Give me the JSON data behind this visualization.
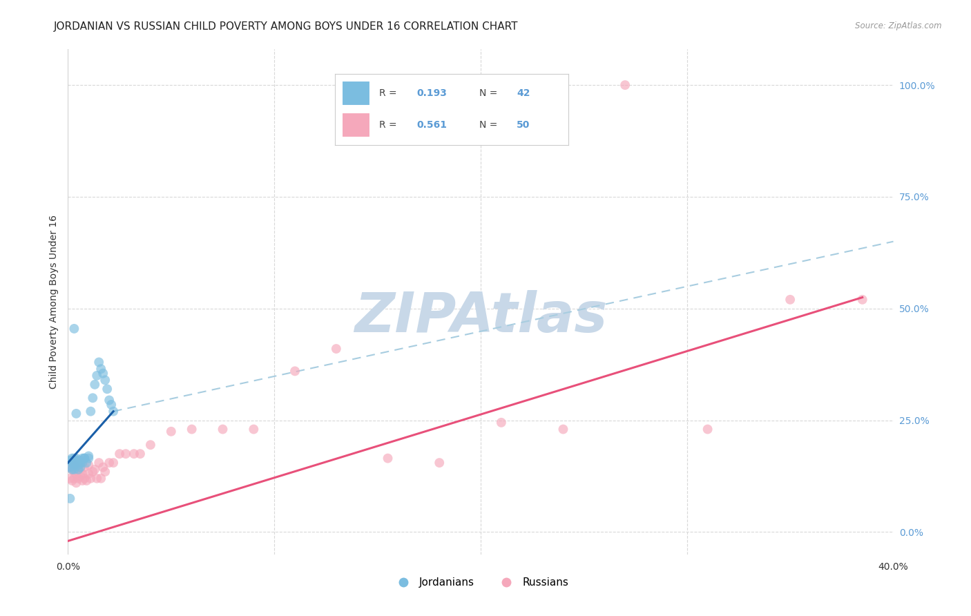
{
  "title": "JORDANIAN VS RUSSIAN CHILD POVERTY AMONG BOYS UNDER 16 CORRELATION CHART",
  "source": "Source: ZipAtlas.com",
  "ylabel": "Child Poverty Among Boys Under 16",
  "xlim": [
    0.0,
    0.4
  ],
  "ylim": [
    -0.05,
    1.08
  ],
  "xtick_vals": [
    0.0,
    0.1,
    0.2,
    0.3,
    0.4
  ],
  "xtick_labels": [
    "0.0%",
    "",
    "",
    "",
    "40.0%"
  ],
  "ytick_vals": [
    0.0,
    0.25,
    0.5,
    0.75,
    1.0
  ],
  "ytick_labels": [
    "0.0%",
    "25.0%",
    "50.0%",
    "75.0%",
    "100.0%"
  ],
  "jordanian_R": 0.193,
  "jordanian_N": 42,
  "russian_R": 0.561,
  "russian_N": 50,
  "jordanian_color": "#7bbde0",
  "russian_color": "#f5a8bb",
  "jordanian_line_color": "#1a5fa8",
  "russian_line_color": "#e8507a",
  "dashed_line_color": "#a8cde0",
  "background_color": "#ffffff",
  "grid_color": "#d8d8d8",
  "legend_box_color": "#ffffff",
  "legend_border_color": "#cccccc",
  "legend_jordanians": "Jordanians",
  "legend_russians": "Russians",
  "tick_color_right": "#5b9bd5",
  "jordanian_x": [
    0.001,
    0.001,
    0.002,
    0.002,
    0.002,
    0.003,
    0.003,
    0.003,
    0.003,
    0.003,
    0.004,
    0.004,
    0.004,
    0.004,
    0.005,
    0.005,
    0.005,
    0.006,
    0.006,
    0.006,
    0.007,
    0.007,
    0.008,
    0.008,
    0.009,
    0.01,
    0.01,
    0.011,
    0.012,
    0.013,
    0.014,
    0.015,
    0.016,
    0.017,
    0.018,
    0.019,
    0.02,
    0.021,
    0.022,
    0.003,
    0.004,
    0.001
  ],
  "jordanian_y": [
    0.145,
    0.16,
    0.155,
    0.165,
    0.14,
    0.15,
    0.165,
    0.155,
    0.14,
    0.16,
    0.155,
    0.16,
    0.165,
    0.155,
    0.155,
    0.15,
    0.14,
    0.16,
    0.155,
    0.145,
    0.165,
    0.155,
    0.165,
    0.165,
    0.155,
    0.165,
    0.17,
    0.27,
    0.3,
    0.33,
    0.35,
    0.38,
    0.365,
    0.355,
    0.34,
    0.32,
    0.295,
    0.285,
    0.27,
    0.455,
    0.265,
    0.075
  ],
  "russian_x": [
    0.001,
    0.001,
    0.002,
    0.002,
    0.003,
    0.003,
    0.003,
    0.004,
    0.004,
    0.005,
    0.005,
    0.005,
    0.006,
    0.006,
    0.007,
    0.007,
    0.008,
    0.008,
    0.009,
    0.01,
    0.01,
    0.011,
    0.012,
    0.013,
    0.014,
    0.015,
    0.016,
    0.017,
    0.018,
    0.02,
    0.022,
    0.025,
    0.028,
    0.032,
    0.035,
    0.04,
    0.05,
    0.06,
    0.075,
    0.09,
    0.11,
    0.13,
    0.155,
    0.18,
    0.21,
    0.24,
    0.27,
    0.31,
    0.35,
    0.385
  ],
  "russian_y": [
    0.12,
    0.145,
    0.115,
    0.14,
    0.12,
    0.135,
    0.15,
    0.11,
    0.13,
    0.12,
    0.14,
    0.155,
    0.125,
    0.14,
    0.115,
    0.13,
    0.12,
    0.145,
    0.115,
    0.13,
    0.15,
    0.12,
    0.135,
    0.14,
    0.12,
    0.155,
    0.12,
    0.145,
    0.135,
    0.155,
    0.155,
    0.175,
    0.175,
    0.175,
    0.175,
    0.195,
    0.225,
    0.23,
    0.23,
    0.23,
    0.36,
    0.41,
    0.165,
    0.155,
    0.245,
    0.23,
    1.0,
    0.23,
    0.52,
    0.52
  ],
  "jordanian_line_x": [
    0.0,
    0.022
  ],
  "jordanian_line_y": [
    0.155,
    0.27
  ],
  "russian_line_x": [
    0.0,
    0.385
  ],
  "russian_line_y": [
    -0.02,
    0.525
  ],
  "dashed_line_x": [
    0.022,
    0.4
  ],
  "dashed_line_y": [
    0.27,
    0.65
  ],
  "title_fontsize": 11,
  "axis_label_fontsize": 10,
  "tick_fontsize": 10,
  "legend_fontsize": 11,
  "scatter_size": 100,
  "scatter_alpha": 0.65
}
